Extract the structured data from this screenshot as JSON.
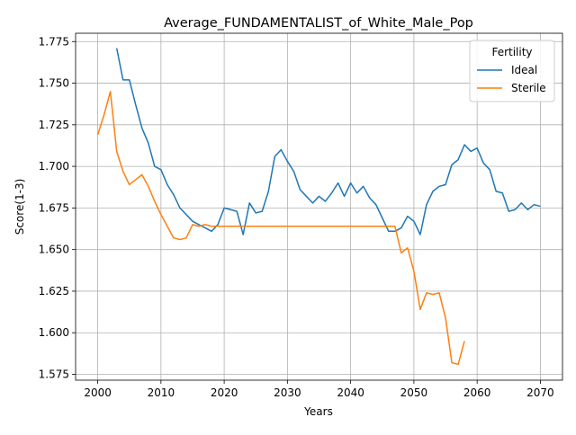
{
  "chart_data": {
    "type": "line",
    "title": "Average_FUNDAMENTALIST_of_White_Male_Pop",
    "xlabel": "Years",
    "ylabel": "Score(1-3)",
    "xlim": [
      1996.5,
      2073.5
    ],
    "ylim": [
      1.5715,
      1.78
    ],
    "x_ticks": [
      2000,
      2010,
      2020,
      2030,
      2040,
      2050,
      2060,
      2070
    ],
    "y_ticks": [
      1.575,
      1.6,
      1.625,
      1.65,
      1.675,
      1.7,
      1.725,
      1.75,
      1.775
    ],
    "grid": true,
    "legend": {
      "title": "Fertility",
      "placement": "top-right"
    },
    "series": [
      {
        "name": "Ideal",
        "color": "#1f77b4",
        "x": [
          2003,
          2004,
          2005,
          2006,
          2007,
          2008,
          2009,
          2010,
          2011,
          2012,
          2013,
          2014,
          2015,
          2016,
          2017,
          2018,
          2019,
          2020,
          2021,
          2022,
          2023,
          2024,
          2025,
          2026,
          2027,
          2028,
          2029,
          2030,
          2031,
          2032,
          2033,
          2034,
          2035,
          2036,
          2037,
          2038,
          2039,
          2040,
          2041,
          2042,
          2043,
          2044,
          2045,
          2046,
          2047,
          2048,
          2049,
          2050,
          2051,
          2052,
          2053,
          2054,
          2055,
          2056,
          2057,
          2058,
          2059,
          2060,
          2061,
          2062,
          2063,
          2064,
          2065,
          2066,
          2067,
          2068,
          2069,
          2070
        ],
        "y": [
          1.771,
          1.752,
          1.752,
          1.737,
          1.723,
          1.714,
          1.7,
          1.698,
          1.689,
          1.683,
          1.675,
          1.671,
          1.667,
          1.665,
          1.663,
          1.661,
          1.665,
          1.675,
          1.674,
          1.673,
          1.659,
          1.678,
          1.672,
          1.673,
          1.685,
          1.706,
          1.71,
          1.703,
          1.697,
          1.686,
          1.682,
          1.678,
          1.682,
          1.679,
          1.684,
          1.69,
          1.682,
          1.69,
          1.684,
          1.688,
          1.681,
          1.677,
          1.669,
          1.661,
          1.661,
          1.663,
          1.67,
          1.667,
          1.659,
          1.677,
          1.685,
          1.688,
          1.689,
          1.701,
          1.704,
          1.713,
          1.709,
          1.711,
          1.702,
          1.698,
          1.685,
          1.684,
          1.673,
          1.674,
          1.678,
          1.674,
          1.677,
          1.676
        ]
      },
      {
        "name": "Sterile",
        "color": "#ff7f0e",
        "x": [
          2000,
          2001,
          2002,
          2003,
          2004,
          2005,
          2006,
          2007,
          2008,
          2009,
          2010,
          2011,
          2012,
          2013,
          2014,
          2015,
          2016,
          2017,
          2018,
          2019,
          2020,
          2021,
          2022,
          2023,
          2024,
          2025,
          2026,
          2027,
          2028,
          2029,
          2030,
          2031,
          2032,
          2033,
          2034,
          2035,
          2036,
          2037,
          2038,
          2039,
          2040,
          2041,
          2042,
          2043,
          2044,
          2045,
          2046,
          2047,
          2048,
          2049,
          2050,
          2051,
          2052,
          2053,
          2054,
          2055,
          2056,
          2057,
          2058
        ],
        "y": [
          1.719,
          1.731,
          1.745,
          1.709,
          1.697,
          1.689,
          1.692,
          1.695,
          1.688,
          1.679,
          1.671,
          1.664,
          1.657,
          1.656,
          1.657,
          1.665,
          1.664,
          1.665,
          1.664,
          1.664,
          1.664,
          1.664,
          1.664,
          1.664,
          1.664,
          1.664,
          1.664,
          1.664,
          1.664,
          1.664,
          1.664,
          1.664,
          1.664,
          1.664,
          1.664,
          1.664,
          1.664,
          1.664,
          1.664,
          1.664,
          1.664,
          1.664,
          1.664,
          1.664,
          1.664,
          1.664,
          1.664,
          1.664,
          1.648,
          1.651,
          1.637,
          1.614,
          1.624,
          1.623,
          1.624,
          1.609,
          1.582,
          1.581,
          1.595
        ]
      }
    ]
  }
}
